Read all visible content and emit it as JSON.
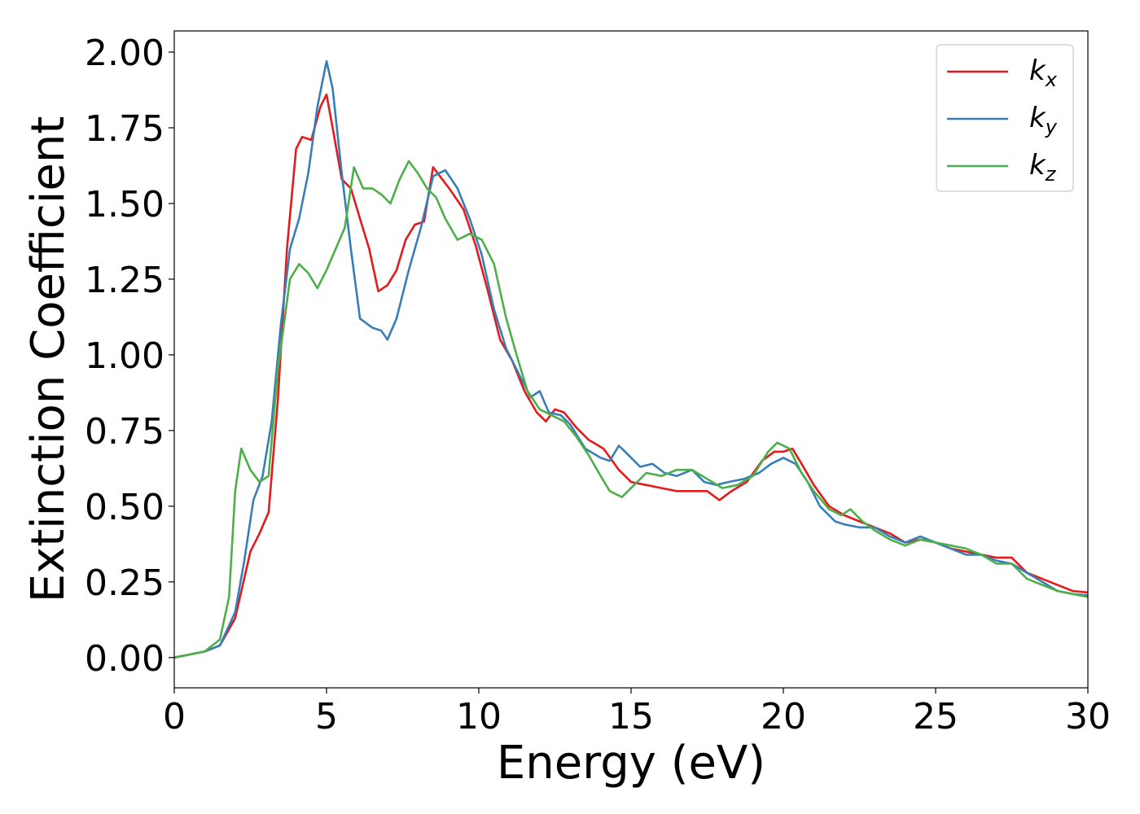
{
  "chart_data": {
    "type": "line",
    "xlabel": "Energy (eV)",
    "ylabel": "Extinction Coefficient",
    "xlim": [
      0,
      30
    ],
    "ylim": [
      -0.1,
      2.07
    ],
    "grid": false,
    "legend_position": "top-right",
    "x_ticks": [
      "0",
      "5",
      "10",
      "15",
      "20",
      "25",
      "30"
    ],
    "y_ticks": [
      "0.00",
      "0.25",
      "0.50",
      "0.75",
      "1.00",
      "1.25",
      "1.50",
      "1.75",
      "2.00"
    ],
    "series": [
      {
        "name": "kx",
        "name_base": "k",
        "name_sub": "x",
        "color": "#e41a1c",
        "points": [
          [
            0,
            0
          ],
          [
            1,
            0.02
          ],
          [
            1.5,
            0.04
          ],
          [
            2,
            0.13
          ],
          [
            2.5,
            0.35
          ],
          [
            2.8,
            0.41
          ],
          [
            3.1,
            0.48
          ],
          [
            3.4,
            0.85
          ],
          [
            3.7,
            1.35
          ],
          [
            4,
            1.68
          ],
          [
            4.2,
            1.72
          ],
          [
            4.5,
            1.71
          ],
          [
            4.8,
            1.82
          ],
          [
            5,
            1.86
          ],
          [
            5.2,
            1.75
          ],
          [
            5.5,
            1.58
          ],
          [
            5.8,
            1.55
          ],
          [
            6.1,
            1.45
          ],
          [
            6.4,
            1.35
          ],
          [
            6.7,
            1.21
          ],
          [
            7,
            1.23
          ],
          [
            7.3,
            1.28
          ],
          [
            7.6,
            1.38
          ],
          [
            7.9,
            1.43
          ],
          [
            8.2,
            1.44
          ],
          [
            8.5,
            1.62
          ],
          [
            8.8,
            1.58
          ],
          [
            9.1,
            1.54
          ],
          [
            9.5,
            1.48
          ],
          [
            9.9,
            1.36
          ],
          [
            10.3,
            1.21
          ],
          [
            10.7,
            1.05
          ],
          [
            11.1,
            0.98
          ],
          [
            11.5,
            0.88
          ],
          [
            11.9,
            0.81
          ],
          [
            12.2,
            0.78
          ],
          [
            12.5,
            0.82
          ],
          [
            12.8,
            0.81
          ],
          [
            13.2,
            0.76
          ],
          [
            13.6,
            0.72
          ],
          [
            14.1,
            0.69
          ],
          [
            14.6,
            0.62
          ],
          [
            15,
            0.58
          ],
          [
            15.5,
            0.57
          ],
          [
            16,
            0.56
          ],
          [
            16.5,
            0.55
          ],
          [
            17,
            0.55
          ],
          [
            17.5,
            0.55
          ],
          [
            17.9,
            0.52
          ],
          [
            18.3,
            0.55
          ],
          [
            18.8,
            0.58
          ],
          [
            19.3,
            0.65
          ],
          [
            19.7,
            0.68
          ],
          [
            20,
            0.68
          ],
          [
            20.3,
            0.69
          ],
          [
            20.6,
            0.64
          ],
          [
            21,
            0.57
          ],
          [
            21.5,
            0.5
          ],
          [
            22,
            0.47
          ],
          [
            22.5,
            0.45
          ],
          [
            23,
            0.43
          ],
          [
            23.5,
            0.41
          ],
          [
            24,
            0.38
          ],
          [
            24.5,
            0.39
          ],
          [
            25,
            0.38
          ],
          [
            25.5,
            0.36
          ],
          [
            26,
            0.35
          ],
          [
            26.5,
            0.34
          ],
          [
            27,
            0.33
          ],
          [
            27.5,
            0.33
          ],
          [
            28,
            0.28
          ],
          [
            28.5,
            0.26
          ],
          [
            29,
            0.24
          ],
          [
            29.5,
            0.22
          ],
          [
            30,
            0.215
          ]
        ]
      },
      {
        "name": "ky",
        "name_base": "k",
        "name_sub": "y",
        "color": "#377eb8",
        "points": [
          [
            0,
            0
          ],
          [
            1,
            0.02
          ],
          [
            1.5,
            0.04
          ],
          [
            2,
            0.15
          ],
          [
            2.3,
            0.32
          ],
          [
            2.6,
            0.52
          ],
          [
            2.9,
            0.6
          ],
          [
            3.2,
            0.78
          ],
          [
            3.5,
            1.1
          ],
          [
            3.8,
            1.35
          ],
          [
            4.1,
            1.45
          ],
          [
            4.4,
            1.6
          ],
          [
            4.7,
            1.82
          ],
          [
            5,
            1.97
          ],
          [
            5.2,
            1.88
          ],
          [
            5.5,
            1.6
          ],
          [
            5.8,
            1.35
          ],
          [
            6.1,
            1.12
          ],
          [
            6.5,
            1.09
          ],
          [
            6.8,
            1.08
          ],
          [
            7,
            1.05
          ],
          [
            7.3,
            1.12
          ],
          [
            7.7,
            1.28
          ],
          [
            8.1,
            1.42
          ],
          [
            8.5,
            1.59
          ],
          [
            8.9,
            1.61
          ],
          [
            9.3,
            1.55
          ],
          [
            9.7,
            1.45
          ],
          [
            10.1,
            1.33
          ],
          [
            10.5,
            1.15
          ],
          [
            10.9,
            1.02
          ],
          [
            11.3,
            0.94
          ],
          [
            11.7,
            0.86
          ],
          [
            12,
            0.88
          ],
          [
            12.3,
            0.81
          ],
          [
            12.7,
            0.8
          ],
          [
            13,
            0.77
          ],
          [
            13.5,
            0.69
          ],
          [
            14,
            0.66
          ],
          [
            14.3,
            0.65
          ],
          [
            14.6,
            0.7
          ],
          [
            14.9,
            0.67
          ],
          [
            15.3,
            0.63
          ],
          [
            15.7,
            0.64
          ],
          [
            16.1,
            0.61
          ],
          [
            16.5,
            0.6
          ],
          [
            17,
            0.62
          ],
          [
            17.4,
            0.58
          ],
          [
            17.8,
            0.57
          ],
          [
            18.2,
            0.58
          ],
          [
            18.7,
            0.59
          ],
          [
            19.2,
            0.61
          ],
          [
            19.6,
            0.64
          ],
          [
            20,
            0.66
          ],
          [
            20.4,
            0.64
          ],
          [
            20.8,
            0.58
          ],
          [
            21.2,
            0.5
          ],
          [
            21.7,
            0.45
          ],
          [
            22,
            0.44
          ],
          [
            22.5,
            0.43
          ],
          [
            23,
            0.43
          ],
          [
            23.5,
            0.4
          ],
          [
            24,
            0.38
          ],
          [
            24.5,
            0.4
          ],
          [
            25,
            0.38
          ],
          [
            25.5,
            0.36
          ],
          [
            26,
            0.34
          ],
          [
            26.5,
            0.34
          ],
          [
            27,
            0.32
          ],
          [
            27.5,
            0.31
          ],
          [
            28,
            0.28
          ],
          [
            28.5,
            0.25
          ],
          [
            29,
            0.22
          ],
          [
            29.5,
            0.21
          ],
          [
            30,
            0.205
          ]
        ]
      },
      {
        "name": "kz",
        "name_base": "k",
        "name_sub": "z",
        "color": "#4daf4a",
        "points": [
          [
            0,
            0
          ],
          [
            1,
            0.02
          ],
          [
            1.5,
            0.06
          ],
          [
            1.8,
            0.2
          ],
          [
            2,
            0.55
          ],
          [
            2.2,
            0.69
          ],
          [
            2.5,
            0.62
          ],
          [
            2.8,
            0.58
          ],
          [
            3.1,
            0.6
          ],
          [
            3.4,
            0.95
          ],
          [
            3.8,
            1.25
          ],
          [
            4.1,
            1.3
          ],
          [
            4.4,
            1.27
          ],
          [
            4.7,
            1.22
          ],
          [
            5,
            1.28
          ],
          [
            5.3,
            1.35
          ],
          [
            5.6,
            1.42
          ],
          [
            5.9,
            1.62
          ],
          [
            6.2,
            1.55
          ],
          [
            6.5,
            1.55
          ],
          [
            6.8,
            1.53
          ],
          [
            7.1,
            1.5
          ],
          [
            7.4,
            1.58
          ],
          [
            7.7,
            1.64
          ],
          [
            8,
            1.6
          ],
          [
            8.3,
            1.55
          ],
          [
            8.6,
            1.52
          ],
          [
            8.9,
            1.45
          ],
          [
            9.3,
            1.38
          ],
          [
            9.7,
            1.4
          ],
          [
            10.1,
            1.38
          ],
          [
            10.5,
            1.3
          ],
          [
            10.9,
            1.12
          ],
          [
            11.3,
            0.98
          ],
          [
            11.6,
            0.88
          ],
          [
            12,
            0.82
          ],
          [
            12.4,
            0.8
          ],
          [
            12.8,
            0.78
          ],
          [
            13.2,
            0.73
          ],
          [
            13.6,
            0.67
          ],
          [
            14,
            0.6
          ],
          [
            14.3,
            0.55
          ],
          [
            14.7,
            0.53
          ],
          [
            15,
            0.56
          ],
          [
            15.5,
            0.61
          ],
          [
            16,
            0.6
          ],
          [
            16.5,
            0.62
          ],
          [
            17,
            0.62
          ],
          [
            17.5,
            0.59
          ],
          [
            18,
            0.56
          ],
          [
            18.5,
            0.57
          ],
          [
            19,
            0.6
          ],
          [
            19.5,
            0.68
          ],
          [
            19.8,
            0.71
          ],
          [
            20.2,
            0.69
          ],
          [
            20.6,
            0.61
          ],
          [
            21,
            0.55
          ],
          [
            21.5,
            0.49
          ],
          [
            21.9,
            0.47
          ],
          [
            22.2,
            0.49
          ],
          [
            22.6,
            0.45
          ],
          [
            23,
            0.42
          ],
          [
            23.5,
            0.39
          ],
          [
            24,
            0.37
          ],
          [
            24.5,
            0.39
          ],
          [
            25,
            0.38
          ],
          [
            25.5,
            0.37
          ],
          [
            26,
            0.36
          ],
          [
            26.5,
            0.34
          ],
          [
            27,
            0.31
          ],
          [
            27.5,
            0.31
          ],
          [
            28,
            0.26
          ],
          [
            28.5,
            0.24
          ],
          [
            29,
            0.22
          ],
          [
            29.5,
            0.21
          ],
          [
            30,
            0.2
          ]
        ]
      }
    ]
  }
}
